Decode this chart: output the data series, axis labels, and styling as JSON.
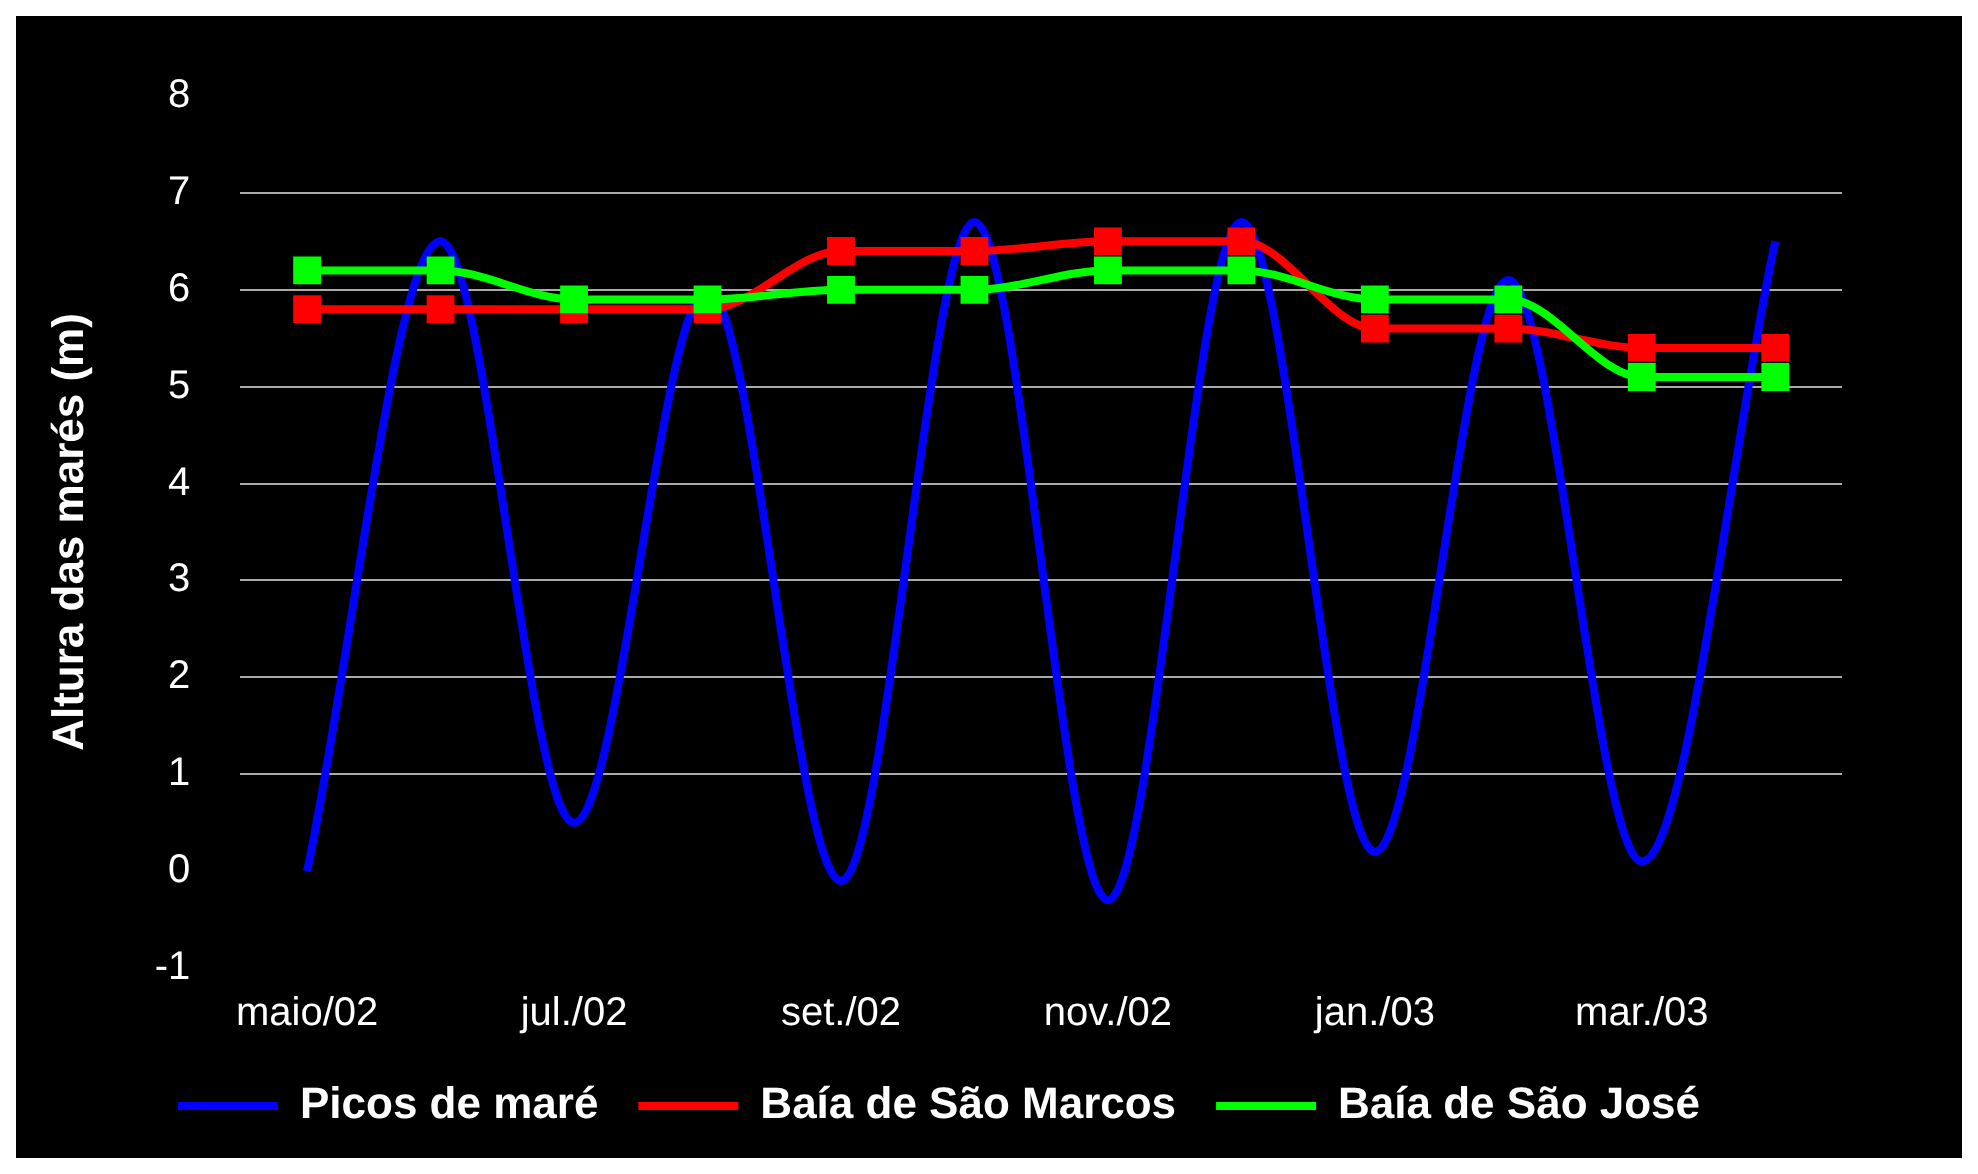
{
  "chart_data": {
    "type": "line",
    "ylabel": "Altura das marés (m)",
    "categories": [
      "maio/02",
      null,
      "jul./02",
      null,
      "set./02",
      null,
      "nov./02",
      null,
      "jan./03",
      null,
      "mar./03",
      null
    ],
    "series": [
      {
        "name": "Picos de maré",
        "color": "#0000ff",
        "marker": "none",
        "values": [
          0,
          6.5,
          0.5,
          6.0,
          -0.1,
          6.7,
          -0.3,
          6.7,
          0.2,
          6.1,
          0.1,
          6.5
        ]
      },
      {
        "name": "Baía de São Marcos",
        "color": "#ff0000",
        "marker": "square",
        "values": [
          5.8,
          5.8,
          5.8,
          5.8,
          6.4,
          6.4,
          6.5,
          6.5,
          5.6,
          5.6,
          5.4,
          5.4
        ]
      },
      {
        "name": "Baía de São José",
        "color": "#00ff00",
        "marker": "square",
        "values": [
          6.2,
          6.2,
          5.9,
          5.9,
          6.0,
          6.0,
          6.2,
          6.2,
          5.9,
          5.9,
          5.1,
          5.1
        ]
      }
    ],
    "ylim": [
      -1,
      8
    ],
    "yticks": [
      -1,
      0,
      1,
      2,
      3,
      4,
      5,
      6,
      7,
      8
    ],
    "grid": "y",
    "legend": "bottom"
  }
}
